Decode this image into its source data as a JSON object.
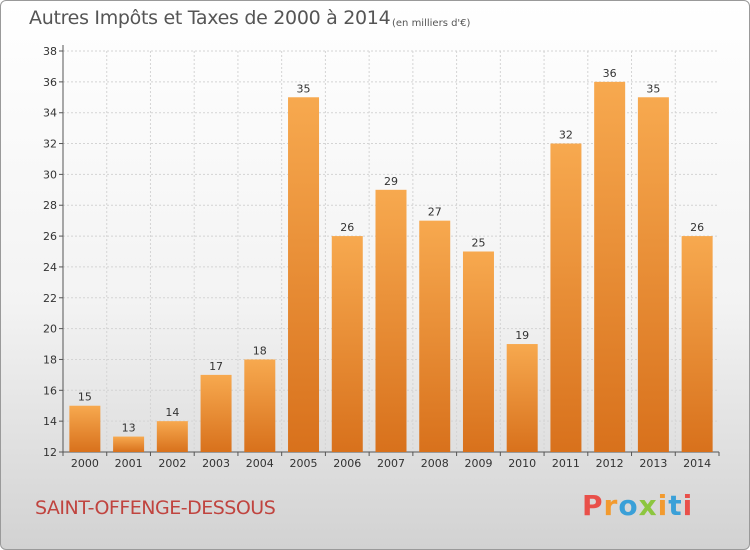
{
  "header": {
    "title": "Autres Impôts et Taxes de 2000 à 2014",
    "subtitle": "(en milliers d'€)"
  },
  "footer": {
    "city": "SAINT-OFFENGE-DESSOUS",
    "logo": "Proxiti"
  },
  "colors": {
    "bar_light": "#f7a94f",
    "bar_dark": "#d8711c",
    "city_text": "#c0443f",
    "logo_letters": [
      "#e9504a",
      "#f29a2e",
      "#3aa0d8",
      "#8dc63f",
      "#f29a2e",
      "#3aa0d8",
      "#e9504a"
    ]
  },
  "chart_data": {
    "type": "bar",
    "title": "Autres Impôts et Taxes de 2000 à 2014",
    "subtitle": "(en milliers d'€)",
    "xlabel": "",
    "ylabel": "",
    "categories": [
      "2000",
      "2001",
      "2002",
      "2003",
      "2004",
      "2005",
      "2006",
      "2007",
      "2008",
      "2009",
      "2010",
      "2011",
      "2012",
      "2013",
      "2014"
    ],
    "values": [
      15,
      13,
      14,
      17,
      18,
      35,
      26,
      29,
      27,
      25,
      19,
      32,
      36,
      35,
      26
    ],
    "ylim": [
      12,
      38
    ],
    "yticks": [
      12,
      14,
      16,
      18,
      20,
      22,
      24,
      26,
      28,
      30,
      32,
      34,
      36,
      38
    ],
    "grid": true,
    "data_labels": true
  }
}
